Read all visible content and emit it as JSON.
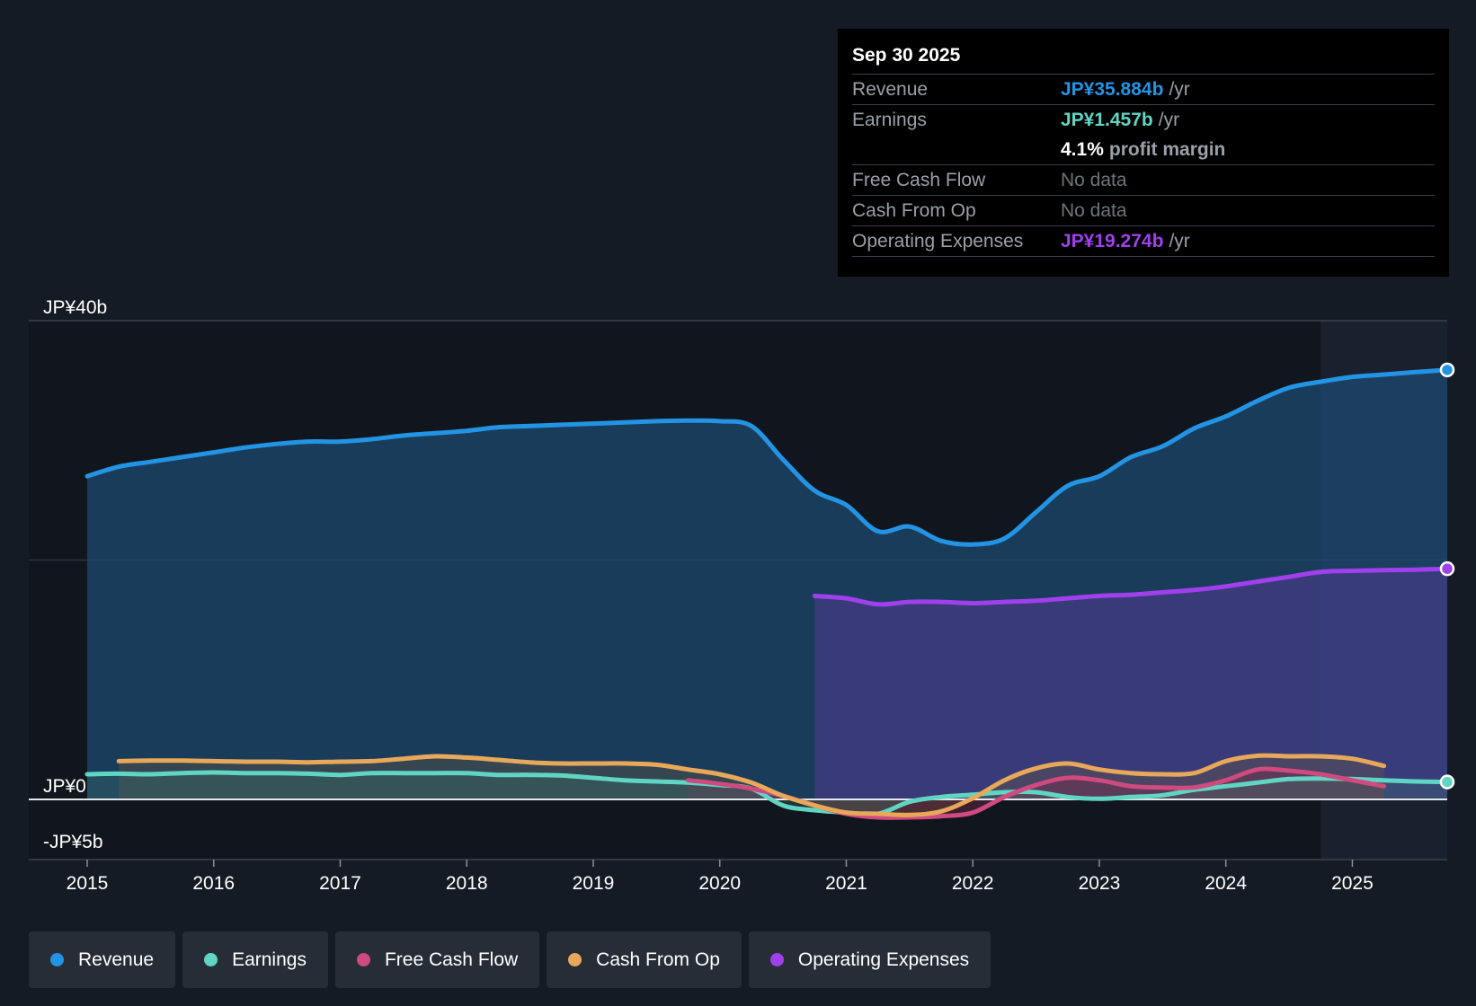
{
  "chart_data": {
    "type": "area",
    "title": "",
    "y_axis_labels": [
      "JP¥40b",
      "JP¥0",
      "-JP¥5b"
    ],
    "ylim": [
      -5,
      40
    ],
    "xlim": [
      2015,
      2025.75
    ],
    "x_ticks": [
      "2015",
      "2016",
      "2017",
      "2018",
      "2019",
      "2020",
      "2021",
      "2022",
      "2023",
      "2024",
      "2025"
    ],
    "past_year_highlight_start": 2024.75,
    "units": "JP¥ billions",
    "series": [
      {
        "name": "Revenue",
        "color": "#2394e4",
        "points": [
          [
            2015,
            27
          ],
          [
            2015.25,
            27.8
          ],
          [
            2015.5,
            28.2
          ],
          [
            2015.75,
            28.6
          ],
          [
            2016,
            29
          ],
          [
            2016.25,
            29.4
          ],
          [
            2016.5,
            29.7
          ],
          [
            2016.75,
            29.9
          ],
          [
            2017,
            29.9
          ],
          [
            2017.25,
            30.1
          ],
          [
            2017.5,
            30.4
          ],
          [
            2017.75,
            30.6
          ],
          [
            2018,
            30.8
          ],
          [
            2018.25,
            31.1
          ],
          [
            2018.5,
            31.2
          ],
          [
            2018.75,
            31.3
          ],
          [
            2019,
            31.4
          ],
          [
            2019.25,
            31.5
          ],
          [
            2019.5,
            31.6
          ],
          [
            2019.75,
            31.65
          ],
          [
            2020,
            31.6
          ],
          [
            2020.25,
            31.2
          ],
          [
            2020.5,
            28.4
          ],
          [
            2020.75,
            25.8
          ],
          [
            2021,
            24.6
          ],
          [
            2021.25,
            22.4
          ],
          [
            2021.5,
            22.8
          ],
          [
            2021.75,
            21.6
          ],
          [
            2022,
            21.3
          ],
          [
            2022.25,
            21.8
          ],
          [
            2022.5,
            24
          ],
          [
            2022.75,
            26.2
          ],
          [
            2023,
            27
          ],
          [
            2023.25,
            28.6
          ],
          [
            2023.5,
            29.5
          ],
          [
            2023.75,
            31
          ],
          [
            2024,
            32
          ],
          [
            2024.25,
            33.3
          ],
          [
            2024.5,
            34.4
          ],
          [
            2024.75,
            34.9
          ],
          [
            2025,
            35.3
          ],
          [
            2025.25,
            35.5
          ],
          [
            2025.5,
            35.7
          ],
          [
            2025.75,
            35.884
          ]
        ]
      },
      {
        "name": "Earnings",
        "color": "#60d5c3",
        "points": [
          [
            2015,
            2.1
          ],
          [
            2015.25,
            2.15
          ],
          [
            2015.5,
            2.1
          ],
          [
            2015.75,
            2.2
          ],
          [
            2016,
            2.25
          ],
          [
            2016.25,
            2.2
          ],
          [
            2016.5,
            2.2
          ],
          [
            2016.75,
            2.15
          ],
          [
            2017,
            2.05
          ],
          [
            2017.25,
            2.2
          ],
          [
            2017.5,
            2.2
          ],
          [
            2017.75,
            2.2
          ],
          [
            2018,
            2.2
          ],
          [
            2018.25,
            2.05
          ],
          [
            2018.5,
            2.05
          ],
          [
            2018.75,
            2
          ],
          [
            2019,
            1.8
          ],
          [
            2019.25,
            1.6
          ],
          [
            2019.5,
            1.5
          ],
          [
            2019.75,
            1.4
          ],
          [
            2020,
            1.2
          ],
          [
            2020.25,
            0.9
          ],
          [
            2020.5,
            -0.5
          ],
          [
            2020.75,
            -0.9
          ],
          [
            2021,
            -1.1
          ],
          [
            2021.25,
            -1.2
          ],
          [
            2021.5,
            -0.2
          ],
          [
            2021.75,
            0.2
          ],
          [
            2022,
            0.4
          ],
          [
            2022.25,
            0.6
          ],
          [
            2022.5,
            0.6
          ],
          [
            2022.75,
            0.2
          ],
          [
            2023,
            0.05
          ],
          [
            2023.25,
            0.2
          ],
          [
            2023.5,
            0.35
          ],
          [
            2023.75,
            0.8
          ],
          [
            2024,
            1.1
          ],
          [
            2024.25,
            1.4
          ],
          [
            2024.5,
            1.7
          ],
          [
            2024.75,
            1.75
          ],
          [
            2025,
            1.7
          ],
          [
            2025.25,
            1.6
          ],
          [
            2025.5,
            1.5
          ],
          [
            2025.75,
            1.457
          ]
        ]
      },
      {
        "name": "Free Cash Flow",
        "color": "#cf4a7e",
        "points": [
          [
            2019.75,
            1.6
          ],
          [
            2020,
            1.3
          ],
          [
            2020.25,
            0.9
          ],
          [
            2020.5,
            0.3
          ],
          [
            2020.75,
            -0.5
          ],
          [
            2021,
            -1.2
          ],
          [
            2021.25,
            -1.5
          ],
          [
            2021.5,
            -1.5
          ],
          [
            2021.75,
            -1.4
          ],
          [
            2022,
            -1.1
          ],
          [
            2022.25,
            0.2
          ],
          [
            2022.5,
            1.2
          ],
          [
            2022.75,
            1.8
          ],
          [
            2023,
            1.6
          ],
          [
            2023.25,
            1.1
          ],
          [
            2023.5,
            1
          ],
          [
            2023.75,
            1
          ],
          [
            2024,
            1.6
          ],
          [
            2024.25,
            2.5
          ],
          [
            2024.5,
            2.4
          ],
          [
            2024.75,
            2.1
          ],
          [
            2025,
            1.6
          ],
          [
            2025.25,
            1.1
          ]
        ]
      },
      {
        "name": "Cash From Op",
        "color": "#e8a85a",
        "points": [
          [
            2015.25,
            3.2
          ],
          [
            2015.5,
            3.25
          ],
          [
            2015.75,
            3.25
          ],
          [
            2016,
            3.2
          ],
          [
            2016.25,
            3.15
          ],
          [
            2016.5,
            3.15
          ],
          [
            2016.75,
            3.1
          ],
          [
            2017,
            3.15
          ],
          [
            2017.25,
            3.2
          ],
          [
            2017.5,
            3.4
          ],
          [
            2017.75,
            3.6
          ],
          [
            2018,
            3.5
          ],
          [
            2018.25,
            3.3
          ],
          [
            2018.5,
            3.1
          ],
          [
            2018.75,
            3
          ],
          [
            2019,
            3
          ],
          [
            2019.25,
            3
          ],
          [
            2019.5,
            2.9
          ],
          [
            2019.75,
            2.5
          ],
          [
            2020,
            2.1
          ],
          [
            2020.25,
            1.4
          ],
          [
            2020.5,
            0.3
          ],
          [
            2020.75,
            -0.5
          ],
          [
            2021,
            -1.1
          ],
          [
            2021.25,
            -1.2
          ],
          [
            2021.5,
            -1.3
          ],
          [
            2021.75,
            -1
          ],
          [
            2022,
            0.1
          ],
          [
            2022.25,
            1.6
          ],
          [
            2022.5,
            2.6
          ],
          [
            2022.75,
            3
          ],
          [
            2023,
            2.5
          ],
          [
            2023.25,
            2.2
          ],
          [
            2023.5,
            2.1
          ],
          [
            2023.75,
            2.2
          ],
          [
            2024,
            3.2
          ],
          [
            2024.25,
            3.65
          ],
          [
            2024.5,
            3.6
          ],
          [
            2024.75,
            3.6
          ],
          [
            2025,
            3.4
          ],
          [
            2025.25,
            2.8
          ]
        ]
      },
      {
        "name": "Operating Expenses",
        "color": "#a040ec",
        "points": [
          [
            2020.75,
            17
          ],
          [
            2021,
            16.8
          ],
          [
            2021.25,
            16.3
          ],
          [
            2021.5,
            16.5
          ],
          [
            2021.75,
            16.5
          ],
          [
            2022,
            16.4
          ],
          [
            2022.25,
            16.5
          ],
          [
            2022.5,
            16.6
          ],
          [
            2022.75,
            16.8
          ],
          [
            2023,
            17
          ],
          [
            2023.25,
            17.1
          ],
          [
            2023.5,
            17.3
          ],
          [
            2023.75,
            17.5
          ],
          [
            2024,
            17.8
          ],
          [
            2024.25,
            18.2
          ],
          [
            2024.5,
            18.6
          ],
          [
            2024.75,
            19
          ],
          [
            2025,
            19.1
          ],
          [
            2025.25,
            19.15
          ],
          [
            2025.5,
            19.2
          ],
          [
            2025.75,
            19.274
          ]
        ]
      }
    ]
  },
  "tooltip": {
    "date": "Sep 30 2025",
    "revenue_label": "Revenue",
    "revenue_value": "JP¥35.884b",
    "revenue_unit": "/yr",
    "earnings_label": "Earnings",
    "earnings_value": "JP¥1.457b",
    "earnings_unit": "/yr",
    "margin_value": "4.1%",
    "margin_text": "profit margin",
    "fcf_label": "Free Cash Flow",
    "fcf_value": "No data",
    "cfo_label": "Cash From Op",
    "cfo_value": "No data",
    "opex_label": "Operating Expenses",
    "opex_value": "JP¥19.274b",
    "opex_unit": "/yr"
  },
  "legend": [
    {
      "label": "Revenue",
      "color": "#2394e4"
    },
    {
      "label": "Earnings",
      "color": "#60d5c3"
    },
    {
      "label": "Free Cash Flow",
      "color": "#cf4a7e"
    },
    {
      "label": "Cash From Op",
      "color": "#e8a85a"
    },
    {
      "label": "Operating Expenses",
      "color": "#a040ec"
    }
  ]
}
